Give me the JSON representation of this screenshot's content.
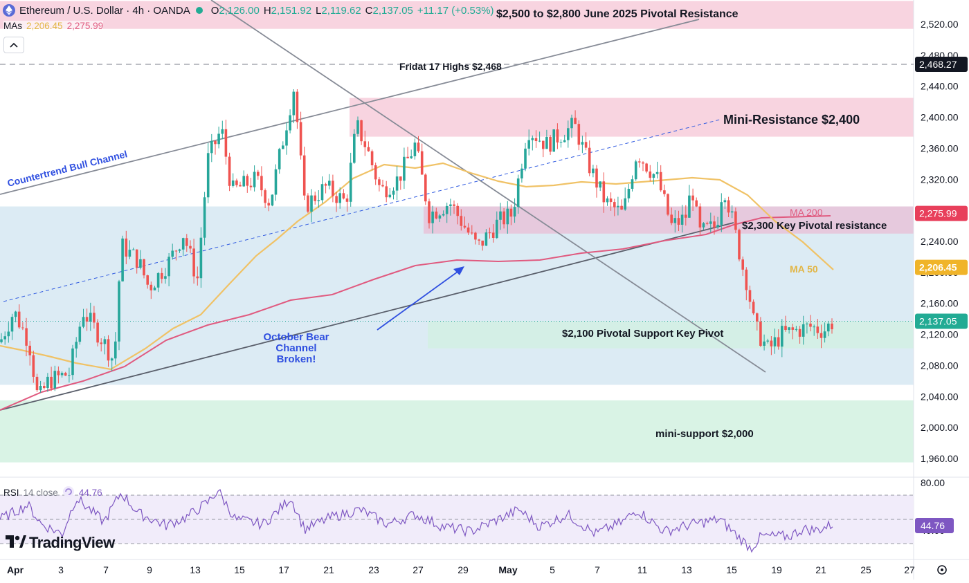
{
  "header": {
    "symbol": "Ethereum / U.S. Dollar · 4h · OANDA",
    "ohlc": [
      {
        "k": "O",
        "v": "2,126.00"
      },
      {
        "k": "H",
        "v": "2,151.92"
      },
      {
        "k": "L",
        "v": "2,119.62"
      },
      {
        "k": "C",
        "v": "2,137.05"
      }
    ],
    "change": "+11.17 (+0.53%)",
    "mas_label": "MAs",
    "ma50_value": "2,206.45",
    "ma200_value": "2,275.99",
    "collapse_icon": "chevron-up-icon"
  },
  "rsi": {
    "name": "RSI",
    "params": "14 close",
    "value": "44.76",
    "ticks": [
      "80.00",
      "40.00"
    ],
    "upper": 70,
    "lower": 30
  },
  "logo": {
    "text": "TradingView"
  },
  "colors": {
    "up": "#26a69a",
    "down": "#ef5350",
    "ma50": "#f0c266",
    "ma200": "#e05a7f",
    "rsi": "#7e57c2",
    "channel_line": "#868b96",
    "annotation_blue": "#2f4fe0"
  },
  "chart_data": {
    "type": "candlestick",
    "timeframe": "4h",
    "y_axis": {
      "ticks": [
        "2,520.00",
        "2,480.00",
        "2,440.00",
        "2,400.00",
        "2,360.00",
        "2,320.00",
        "2,280.00",
        "2,240.00",
        "2,200.00",
        "2,160.00",
        "2,120.00",
        "2,080.00",
        "2,040.00",
        "2,000.00",
        "1,960.00"
      ],
      "range": [
        1950,
        2535
      ]
    },
    "x_axis": {
      "labels": [
        "Apr",
        "3",
        "7",
        "9",
        "13",
        "15",
        "17",
        "21",
        "23",
        "27",
        "29",
        "May",
        "5",
        "7",
        "11",
        "13",
        "15",
        "19",
        "21",
        "25",
        "27"
      ]
    },
    "price_labels": [
      {
        "text": "2,468.27",
        "value": 2468.27,
        "bg": "#131722"
      },
      {
        "text": "2,275.99",
        "value": 2275.99,
        "bg": "#e83f5b"
      },
      {
        "text": "2,206.45",
        "value": 2206.45,
        "bg": "#f0b429"
      },
      {
        "text": "2,137.05",
        "value": 2137.05,
        "bg": "#22ab94"
      }
    ],
    "zones": [
      {
        "from": 2514,
        "to": 2550,
        "color": "#f8d4e0",
        "label": "$2,500 to $2,800 June 2025 Pivotal Resistance"
      },
      {
        "from": 2375,
        "to": 2425,
        "color": "#f8d4e0",
        "label": "Mini-Resistance $2,400"
      },
      {
        "from": 2055,
        "to": 2285,
        "color": "#dcebf4",
        "label": ""
      },
      {
        "from": 2250,
        "to": 2285,
        "color": "#e8c3d8",
        "label": "$2,300 Key Pivotal resistance"
      },
      {
        "from": 2102,
        "to": 2137,
        "color": "#d4efe6",
        "label": "$2,100 Pivotal Support Key Pivot"
      },
      {
        "from": 1955,
        "to": 2035,
        "color": "#d9f3e5",
        "label": "mini-support $2,000"
      }
    ],
    "annotations": [
      {
        "text": "Countertrend Bull Channel"
      },
      {
        "text": "Fridat 17 Highs $2,468",
        "value": 2468
      },
      {
        "text": "MA 200"
      },
      {
        "text": "MA 50"
      },
      {
        "lines": [
          "October Bear",
          "Channel",
          "Broken!"
        ]
      }
    ],
    "last_close": 2137.05,
    "ma50_last": 2206.45,
    "ma200_last": 2275.99,
    "rsi_last": 44.76
  }
}
